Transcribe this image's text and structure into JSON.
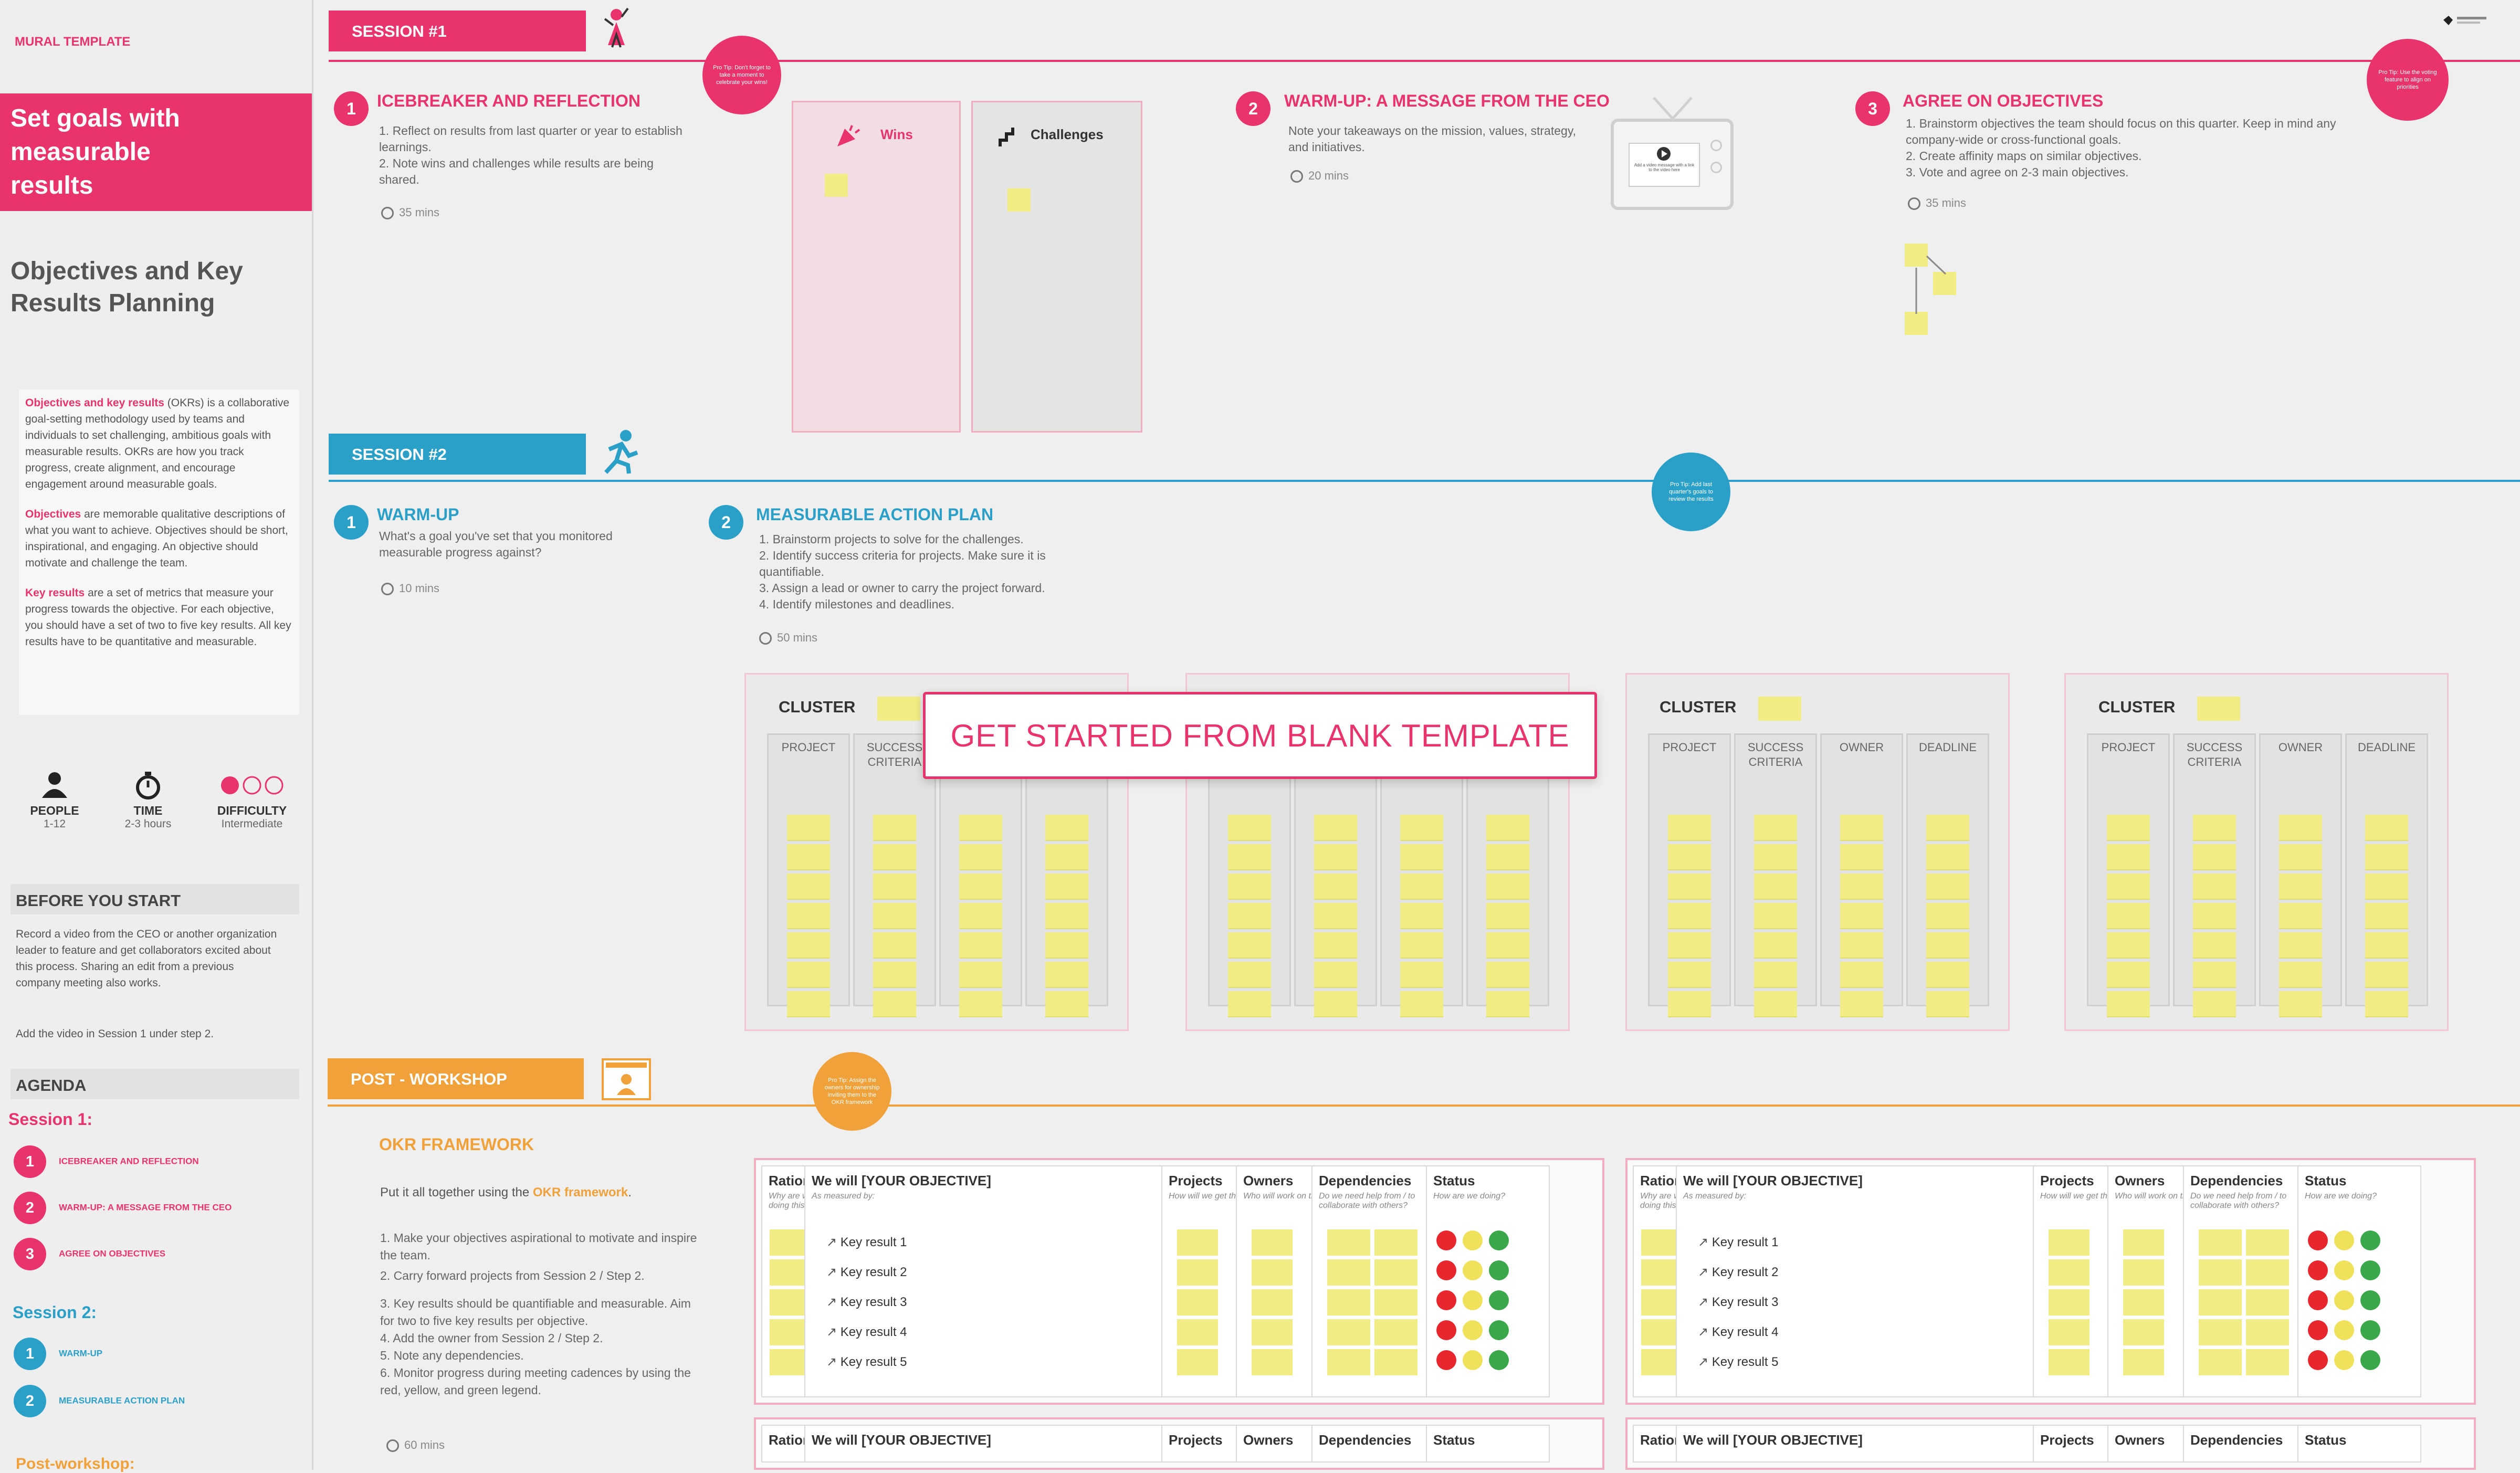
{
  "sidebar": {
    "brand": "MURAL TEMPLATE",
    "hero_title": "Set goals with measurable results",
    "subtitle": "Objectives and Key Results Planning",
    "intro": [
      {
        "lead": "Objectives and key results",
        "text": " (OKRs) is a collaborative goal-setting methodology used by teams and individuals to set challenging, ambitious goals with measurable results. OKRs are how you track progress, create alignment, and encourage engagement around measurable goals."
      },
      {
        "lead": "Objectives",
        "text": " are memorable qualitative descriptions of what you want to achieve. Objectives should be short, inspirational, and engaging. An objective should motivate and challenge the team."
      },
      {
        "lead": "Key results",
        "text": " are a set of metrics that measure your progress towards the objective. For each objective, you should have a set of two to five key results. All key results have to be quantitative and measurable."
      }
    ],
    "stats": [
      {
        "label": "PEOPLE",
        "value": "1-12",
        "icon": "person-icon"
      },
      {
        "label": "TIME",
        "value": "2-3 hours",
        "icon": "stopwatch-icon"
      },
      {
        "label": "DIFFICULTY",
        "value": "Intermediate",
        "icon": "difficulty-dots-icon"
      }
    ],
    "before_title": "BEFORE YOU START",
    "before_text": "Record a video from the CEO or another organization leader to feature and get collaborators excited about this process. Sharing an edit from a previous company meeting also works.",
    "before_text2": "Add the video in Session 1 under step 2.",
    "agenda_title": "AGENDA",
    "agenda": [
      {
        "session": "Session 1:",
        "items": [
          "ICEBREAKER AND REFLECTION",
          "WARM-UP: A MESSAGE FROM THE CEO",
          "AGREE ON OBJECTIVES"
        ]
      },
      {
        "session": "Session 2:",
        "items": [
          "WARM-UP",
          "MEASURABLE ACTION PLAN"
        ]
      },
      {
        "session": "Post-workshop:",
        "items": []
      }
    ]
  },
  "session1": {
    "label": "SESSION #1",
    "badge_left": "Pro Tip: Don't forget to take a moment to celebrate your wins!",
    "badge_right": "Pro Tip: Use the voting feature to align on priorities",
    "steps": [
      {
        "num": "1",
        "title": "ICEBREAKER AND REFLECTION",
        "desc": "1. Reflect on results from last quarter or year to establish learnings.\n2. Note wins and challenges while results are being shared.",
        "time": "35 mins"
      },
      {
        "num": "2",
        "title": "WARM-UP: A MESSAGE FROM THE CEO",
        "desc": "Note your takeaways on the mission, values, strategy, and initiatives.",
        "time": "20 mins"
      },
      {
        "num": "3",
        "title": "AGREE ON OBJECTIVES",
        "desc": "1. Brainstorm objectives the team should focus on this quarter. Keep in mind any company-wide or cross-functional goals.\n2. Create affinity maps on similar objectives.\n3. Vote and agree on 2-3 main objectives.",
        "time": "35 mins"
      }
    ],
    "wins": "Wins",
    "challenges": "Challenges",
    "video_caption": "Add a video message with a link to the video here"
  },
  "session2": {
    "label": "SESSION #2",
    "badge": "Pro Tip: Add last quarter's goals to review the results",
    "steps": [
      {
        "num": "1",
        "title": "WARM-UP",
        "desc": "What's a goal you've set that you monitored measurable progress against?",
        "time": "10 mins"
      },
      {
        "num": "2",
        "title": "MEASURABLE ACTION PLAN",
        "desc": "1. Brainstorm projects to solve for the challenges.\n2. Identify success criteria for projects. Make sure it is quantifiable.\n3. Assign a lead or owner to carry the project forward.\n4. Identify milestones and deadlines.",
        "time": "50 mins"
      }
    ],
    "cluster_label": "CLUSTER",
    "columns": [
      "PROJECT",
      "SUCCESS CRITERIA",
      "OWNER",
      "DEADLINE"
    ]
  },
  "post": {
    "label": "POST - WORKSHOP",
    "badge": "Pro Tip: Assign the owners for ownership inviting them to the OKR framework",
    "title": "OKR FRAMEWORK",
    "intro_pre": "Put it all together using the ",
    "intro_link": "OKR framework",
    "intro_post": ".",
    "steps": [
      "1. Make your objectives aspirational to motivate and inspire the team.",
      "2. Carry forward projects from Session 2 / Step 2.",
      "3. Key results should be quantifiable and measurable. Aim for two to five key results per objective.",
      "4. Add the owner from Session 2 / Step 2.",
      "5. Note any dependencies.",
      "6. Monitor progress during meeting cadences by using the red, yellow, and green legend."
    ],
    "time": "60 mins",
    "okr_headers": {
      "rationale": "Rationale",
      "objective": "We will [YOUR OBJECTIVE]",
      "projects": "Projects",
      "owners": "Owners",
      "dependencies": "Dependencies",
      "status": "Status"
    },
    "okr_subs": {
      "rationale": "Why are we doing this?",
      "objective": "As measured by:",
      "projects": "How will we get there?",
      "owners": "Who will work on this?",
      "dependencies": "Do we need help from / to collaborate with others?",
      "status": "How are we doing?"
    },
    "key_results": [
      "Key result 1",
      "Key result 2",
      "Key result 3",
      "Key result 4",
      "Key result 5"
    ],
    "status_colors": [
      "#e8262d",
      "#f0e15a",
      "#3aa84a"
    ]
  },
  "overlay": {
    "cta": "GET STARTED FROM BLANK TEMPLATE"
  },
  "colors": {
    "pink": "#e8336d",
    "blue": "#2aa0c9",
    "orange": "#f0a13a",
    "sticky": "#f2ec84"
  }
}
